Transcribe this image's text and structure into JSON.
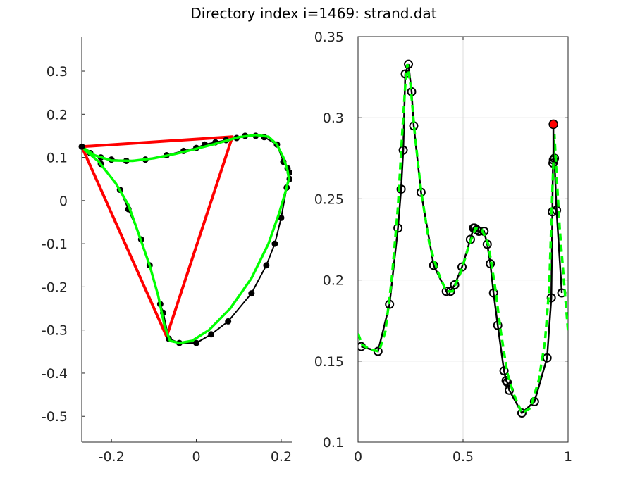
{
  "figure_title": "Directory index i=1469: strand.dat",
  "chart_data": [
    {
      "type": "line",
      "panel": "left",
      "xlim": [
        -0.27,
        0.225
      ],
      "ylim": [
        -0.56,
        0.38
      ],
      "xticks": [
        -0.2,
        0,
        0.2
      ],
      "xtick_labels": [
        "-0.2",
        "0",
        "0.2"
      ],
      "yticks": [
        -0.5,
        -0.4,
        -0.3,
        -0.2,
        -0.1,
        0,
        0.1,
        0.2,
        0.3
      ],
      "ytick_labels": [
        "-0.5",
        "-0.4",
        "-0.3",
        "-0.2",
        "-0.1",
        "0",
        "0.1",
        "0.2",
        "0.3"
      ],
      "grid": false,
      "series": [
        {
          "role": "red-triangle",
          "color": "#ff0000",
          "x": [
            -0.27,
            0.085,
            -0.07,
            -0.27
          ],
          "y": [
            0.125,
            0.148,
            -0.315,
            0.125
          ]
        },
        {
          "role": "black-polyline-with-points",
          "color": "#000000",
          "x": [
            -0.27,
            -0.25,
            -0.225,
            -0.2,
            -0.165,
            -0.12,
            -0.07,
            -0.03,
            0.0,
            0.02,
            0.045,
            0.07,
            0.095,
            0.115,
            0.14,
            0.16,
            0.19,
            0.205,
            0.215,
            0.22,
            0.22,
            0.213,
            0.2,
            0.185,
            0.165,
            0.13,
            0.075,
            0.035,
            0.0,
            -0.04,
            -0.065,
            -0.078,
            -0.085,
            -0.11,
            -0.13,
            -0.16,
            -0.18,
            -0.225,
            -0.25,
            -0.27
          ],
          "y": [
            0.125,
            0.11,
            0.1,
            0.095,
            0.092,
            0.095,
            0.105,
            0.115,
            0.122,
            0.13,
            0.135,
            0.14,
            0.145,
            0.15,
            0.15,
            0.147,
            0.13,
            0.09,
            0.075,
            0.065,
            0.05,
            0.03,
            -0.04,
            -0.1,
            -0.15,
            -0.215,
            -0.28,
            -0.31,
            -0.33,
            -0.33,
            -0.32,
            -0.26,
            -0.24,
            -0.15,
            -0.09,
            -0.02,
            0.025,
            0.085,
            0.11,
            0.125
          ]
        },
        {
          "role": "green-smooth-curve",
          "color": "#00ff00",
          "x": [
            -0.27,
            -0.24,
            -0.2,
            -0.15,
            -0.1,
            -0.05,
            0.0,
            0.05,
            0.1,
            0.14,
            0.17,
            0.19,
            0.205,
            0.215,
            0.218,
            0.21,
            0.195,
            0.17,
            0.13,
            0.08,
            0.03,
            -0.01,
            -0.04,
            -0.062,
            -0.075,
            -0.09,
            -0.11,
            -0.135,
            -0.16,
            -0.19,
            -0.23,
            -0.26,
            -0.27
          ],
          "y": [
            0.125,
            0.105,
            0.093,
            0.092,
            0.098,
            0.108,
            0.12,
            0.133,
            0.147,
            0.152,
            0.148,
            0.13,
            0.1,
            0.07,
            0.05,
            0.02,
            -0.03,
            -0.1,
            -0.18,
            -0.25,
            -0.3,
            -0.325,
            -0.33,
            -0.325,
            -0.29,
            -0.22,
            -0.15,
            -0.08,
            -0.01,
            0.04,
            0.09,
            0.115,
            0.125
          ]
        }
      ]
    },
    {
      "type": "line",
      "panel": "right",
      "xlim": [
        0,
        1
      ],
      "ylim": [
        0.1,
        0.35
      ],
      "xticks": [
        0,
        0.5,
        1
      ],
      "xtick_labels": [
        "0",
        "0.5",
        "1"
      ],
      "yticks": [
        0.1,
        0.15,
        0.2,
        0.25,
        0.3,
        0.35
      ],
      "ytick_labels": [
        "0.1",
        "0.15",
        "0.2",
        "0.25",
        "0.3",
        "0.35"
      ],
      "grid": true,
      "series": [
        {
          "role": "black-line-open-circles",
          "color": "#000000",
          "x": [
            0.015,
            0.095,
            0.15,
            0.19,
            0.205,
            0.215,
            0.225,
            0.24,
            0.255,
            0.265,
            0.3,
            0.36,
            0.42,
            0.44,
            0.46,
            0.495,
            0.535,
            0.55,
            0.555,
            0.565,
            0.575,
            0.6,
            0.615,
            0.63,
            0.645,
            0.665,
            0.695,
            0.705,
            0.71,
            0.72,
            0.78,
            0.84,
            0.9,
            0.92,
            0.925,
            0.928,
            0.93,
            0.935,
            0.945,
            0.97
          ],
          "y": [
            0.159,
            0.156,
            0.185,
            0.232,
            0.256,
            0.28,
            0.327,
            0.333,
            0.316,
            0.295,
            0.254,
            0.209,
            0.193,
            0.193,
            0.197,
            0.208,
            0.225,
            0.232,
            0.232,
            0.231,
            0.23,
            0.23,
            0.222,
            0.21,
            0.192,
            0.172,
            0.144,
            0.138,
            0.137,
            0.132,
            0.118,
            0.125,
            0.152,
            0.189,
            0.242,
            0.272,
            0.274,
            0.275,
            0.243,
            0.192
          ]
        },
        {
          "role": "green-dashed-curve",
          "color": "#00ff00",
          "x": [
            0.0,
            0.02,
            0.06,
            0.1,
            0.13,
            0.16,
            0.19,
            0.21,
            0.225,
            0.235,
            0.25,
            0.27,
            0.3,
            0.34,
            0.38,
            0.42,
            0.45,
            0.49,
            0.53,
            0.56,
            0.59,
            0.62,
            0.65,
            0.68,
            0.71,
            0.74,
            0.78,
            0.82,
            0.86,
            0.89,
            0.91,
            0.925,
            0.935,
            0.945,
            0.96,
            0.98,
            1.0
          ],
          "y": [
            0.167,
            0.16,
            0.157,
            0.156,
            0.168,
            0.2,
            0.245,
            0.29,
            0.32,
            0.333,
            0.32,
            0.29,
            0.255,
            0.222,
            0.205,
            0.193,
            0.193,
            0.205,
            0.222,
            0.232,
            0.231,
            0.222,
            0.198,
            0.168,
            0.143,
            0.13,
            0.118,
            0.121,
            0.138,
            0.162,
            0.195,
            0.255,
            0.29,
            0.265,
            0.232,
            0.2,
            0.168
          ]
        },
        {
          "role": "black-vertical-segment",
          "color": "#000000",
          "x": [
            0.93,
            0.93
          ],
          "y": [
            0.274,
            0.296
          ]
        },
        {
          "role": "red-filled-marker",
          "color": "#ff0000",
          "x": [
            0.93
          ],
          "y": [
            0.296
          ]
        }
      ]
    }
  ]
}
